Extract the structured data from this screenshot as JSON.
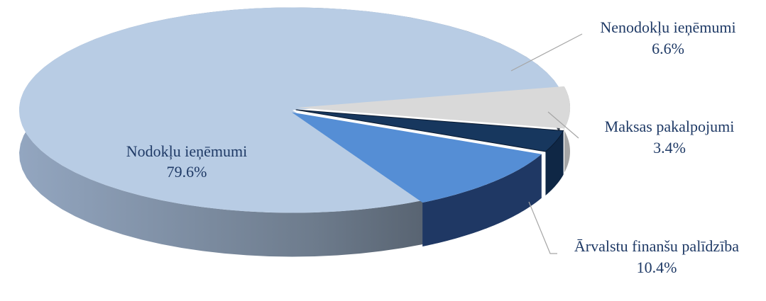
{
  "chart_data": {
    "type": "pie",
    "style": "3d-exploded",
    "series": [
      {
        "slices": [
          {
            "label": "Nodokļu ieņēmumi",
            "value": 79.6,
            "value_text": "79.6%",
            "color": "#b8cce4",
            "side_color": "#8c9fb8",
            "label_position": "inside"
          },
          {
            "label": "Nenodokļu ieņēmumi",
            "value": 6.6,
            "value_text": "6.6%",
            "color": "#d9d9d9",
            "side_color": "#a6a6a6",
            "label_position": "outside"
          },
          {
            "label": "Maksas pakalpojumi",
            "value": 3.4,
            "value_text": "3.4%",
            "color": "#17375e",
            "side_color": "#0f2745",
            "label_position": "outside"
          },
          {
            "label": "Ārvalstu finanšu palīdzība",
            "value": 10.4,
            "value_text": "10.4%",
            "color": "#558ed5",
            "side_color": "#1f3864",
            "label_position": "outside"
          }
        ]
      }
    ],
    "legend": "none",
    "title": ""
  }
}
